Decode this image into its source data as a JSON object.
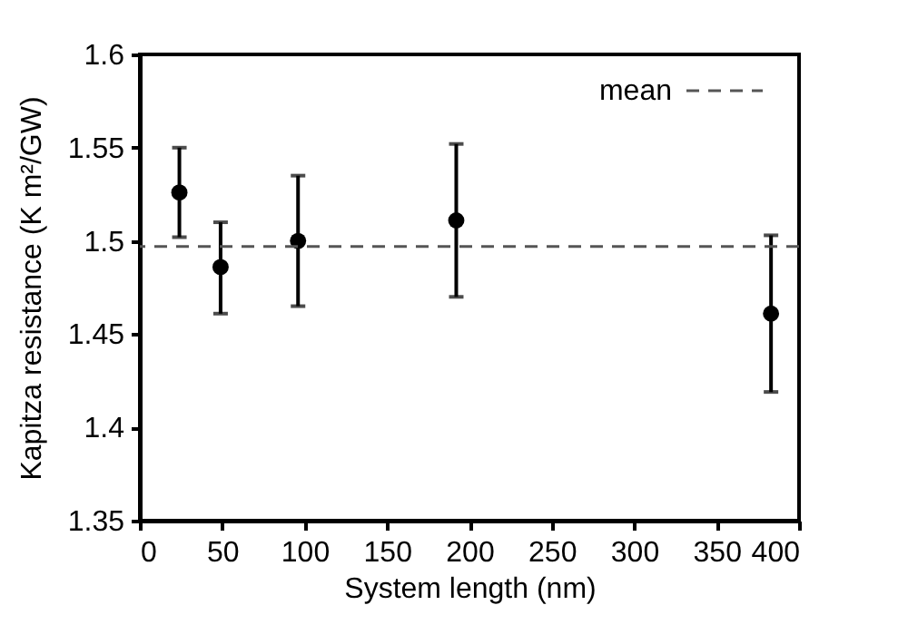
{
  "chart_data": {
    "type": "scatter",
    "xlabel": "System length (nm)",
    "ylabel": "Kapitza resistance (K m²/GW)",
    "x": [
      24,
      49,
      96,
      192,
      383
    ],
    "series": [
      {
        "color": "#000000",
        "values": [
          1.526,
          1.486,
          1.5,
          1.511,
          1.461
        ],
        "errors": [
          [
            1.502,
            1.55
          ],
          [
            1.461,
            1.51
          ],
          [
            1.465,
            1.535
          ],
          [
            1.47,
            1.552
          ],
          [
            1.419,
            1.503
          ]
        ]
      }
    ],
    "marker": "circle",
    "xlim": [
      0,
      400
    ],
    "xticks": [
      0,
      50,
      100,
      150,
      200,
      250,
      300,
      350,
      400
    ],
    "ylim": [
      1.35,
      1.6
    ],
    "yticks": [
      1.35,
      1.4,
      1.45,
      1.5,
      1.55,
      1.6
    ],
    "ref_lines": [
      {
        "axis": "y",
        "value": 1.497,
        "label": "mean",
        "color": "#555555",
        "line_style": "dashed"
      }
    ],
    "legend": "top right",
    "grid": false
  }
}
